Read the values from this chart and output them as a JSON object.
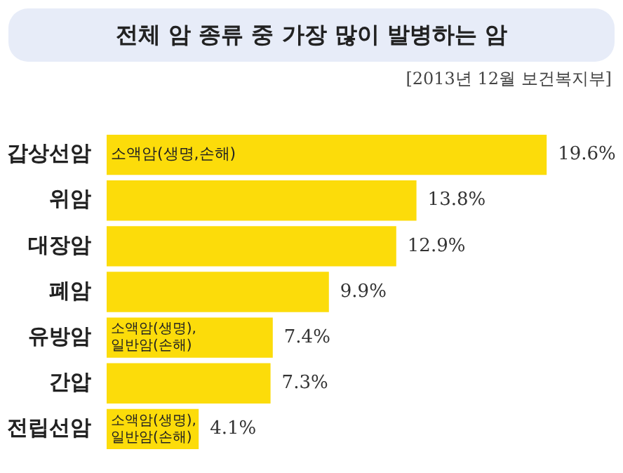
{
  "chart_data": {
    "type": "bar",
    "orientation": "horizontal",
    "title": "전체 암 종류 중 가장 많이 발병하는 암",
    "categories": [
      "갑상선암",
      "위암",
      "대장암",
      "폐암",
      "유방암",
      "간압",
      "전립선암"
    ],
    "values": [
      19.6,
      13.8,
      12.9,
      9.9,
      7.4,
      7.3,
      4.1
    ],
    "value_labels": [
      "19.6%",
      "13.8%",
      "12.9%",
      "9.9%",
      "7.4%",
      "7.3%",
      "4.1%"
    ],
    "color": "#fcdc0a",
    "tick_labels": "y",
    "legend": false,
    "annotations": [
      "[2013년 12월 보건복지부]",
      {
        "text": "소액암(생명,손해)",
        "y": "갑상선암"
      },
      {
        "text": "소액암(생명), 일반암(손해)",
        "y": "유방암"
      },
      {
        "text": "소액암(생명), 일반암(손해)",
        "y": "전립선암"
      }
    ]
  }
}
